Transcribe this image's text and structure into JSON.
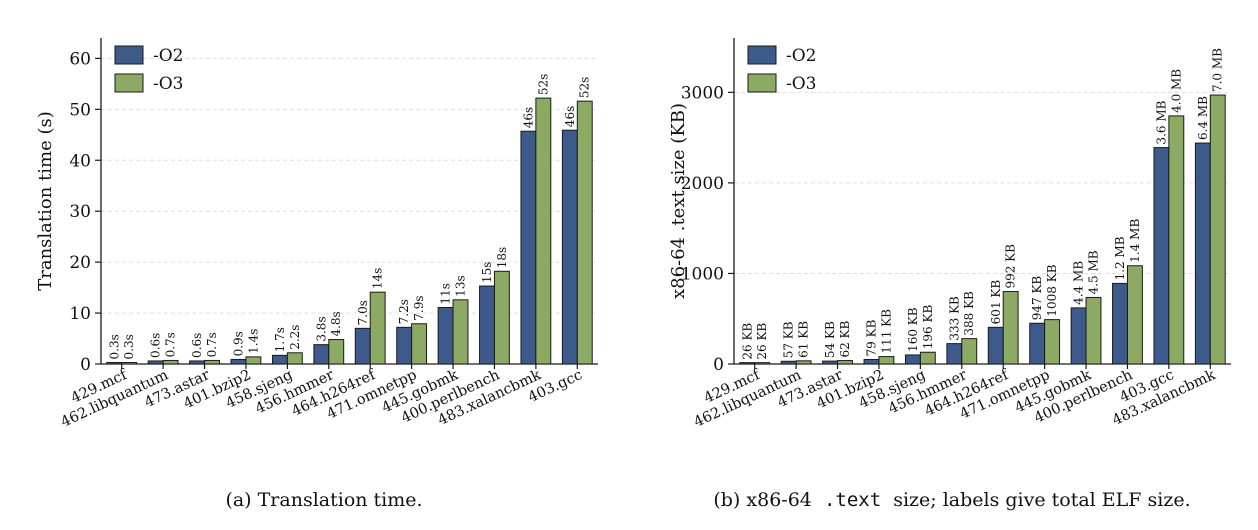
{
  "colors": {
    "O2": "#3d5a8a",
    "O3": "#8daa64",
    "edge": "#1a1a1a",
    "grid": "#dddddd"
  },
  "chart_data": [
    {
      "type": "bar",
      "title": "",
      "xlabel": "",
      "ylabel": "Translation time (s)",
      "ylim": [
        0,
        64
      ],
      "yticks": [
        0,
        10,
        20,
        30,
        40,
        50,
        60
      ],
      "grid": true,
      "legend": "top-left",
      "categories": [
        "429.mcf",
        "462.libquantum",
        "473.astar",
        "401.bzip2",
        "458.sjeng",
        "456.hmmer",
        "464.h264ref",
        "471.omnetpp",
        "445.gobmk",
        "400.perlbench",
        "483.xalancbmk",
        "403.gcc"
      ],
      "series": [
        {
          "name": "-O2",
          "color": "#3d5a8a",
          "values": [
            0.3,
            0.6,
            0.6,
            0.9,
            1.7,
            3.8,
            7.0,
            7.2,
            11.1,
            15.3,
            45.7,
            45.9
          ],
          "labels": [
            "0.3s",
            "0.6s",
            "0.6s",
            "0.9s",
            "1.7s",
            "3.8s",
            "7.0s",
            "7.2s",
            "11s",
            "15s",
            "46s",
            "46s"
          ]
        },
        {
          "name": "-O3",
          "color": "#8daa64",
          "values": [
            0.3,
            0.7,
            0.7,
            1.4,
            2.2,
            4.8,
            14.1,
            7.9,
            12.6,
            18.2,
            52.2,
            51.6
          ],
          "labels": [
            "0.3s",
            "0.7s",
            "0.7s",
            "1.4s",
            "2.2s",
            "4.8s",
            "14s",
            "7.9s",
            "13s",
            "18s",
            "52s",
            "52s"
          ]
        }
      ],
      "caption": "(a) Translation time."
    },
    {
      "type": "bar",
      "title": "",
      "xlabel": "",
      "ylabel": "x86-64 .text size (KB)",
      "ylim": [
        0,
        3600
      ],
      "yticks": [
        0,
        1000,
        2000,
        3000
      ],
      "grid": true,
      "legend": "top-left",
      "categories": [
        "429.mcf",
        "462.libquantum",
        "473.astar",
        "401.bzip2",
        "458.sjeng",
        "456.hmmer",
        "464.h264ref",
        "471.omnetpp",
        "445.gobmk",
        "400.perlbench",
        "403.gcc",
        "483.xalancbmk"
      ],
      "series": [
        {
          "name": "-O2",
          "color": "#3d5a8a",
          "values": [
            15,
            30,
            32,
            50,
            100,
            225,
            405,
            450,
            620,
            890,
            2390,
            2440
          ],
          "labels": [
            "26 KB",
            "57 KB",
            "54 KB",
            "79 KB",
            "160 KB",
            "333 KB",
            "601 KB",
            "947 KB",
            "4.4 MB",
            "1.2 MB",
            "3.6 MB",
            "6.4 MB"
          ]
        },
        {
          "name": "-O3",
          "color": "#8daa64",
          "values": [
            15,
            35,
            38,
            82,
            130,
            280,
            800,
            490,
            735,
            1085,
            2740,
            2970
          ],
          "labels": [
            "26 KB",
            "61 KB",
            "62 KB",
            "111 KB",
            "196 KB",
            "388 KB",
            "992 KB",
            "1008 KB",
            "4.5 MB",
            "1.4 MB",
            "4.0 MB",
            "7.0 MB"
          ]
        }
      ],
      "caption_prefix": "(b) x86-64",
      "caption_code": ".text",
      "caption_suffix": "size; labels give total ELF size."
    }
  ]
}
